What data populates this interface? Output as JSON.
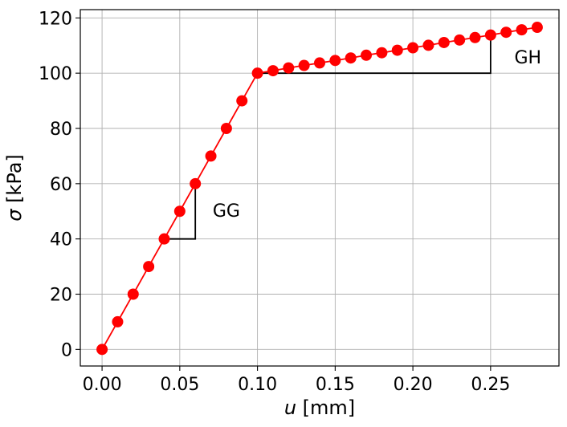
{
  "chart_data": {
    "type": "line",
    "title": "",
    "xlabel": {
      "symbol": "u",
      "unit": " [mm]"
    },
    "ylabel": {
      "symbol": "σ",
      "unit": " [kPa]"
    },
    "xlim": [
      -0.014,
      0.294
    ],
    "ylim": [
      -6,
      123
    ],
    "xticks": [
      0.0,
      0.05,
      0.1,
      0.15,
      0.2,
      0.25
    ],
    "xtick_labels": [
      "0.00",
      "0.05",
      "0.10",
      "0.15",
      "0.20",
      "0.25"
    ],
    "yticks": [
      0,
      20,
      40,
      60,
      80,
      100,
      120
    ],
    "ytick_labels": [
      "0",
      "20",
      "40",
      "60",
      "80",
      "100",
      "120"
    ],
    "grid": true,
    "series": [
      {
        "color": "#ff0000",
        "marker": "circle",
        "x": [
          0.0,
          0.01,
          0.02,
          0.03,
          0.04,
          0.05,
          0.06,
          0.07,
          0.08,
          0.09,
          0.1,
          0.11,
          0.12,
          0.13,
          0.14,
          0.15,
          0.16,
          0.17,
          0.18,
          0.19,
          0.2,
          0.21,
          0.22,
          0.23,
          0.24,
          0.25,
          0.26,
          0.27,
          0.28
        ],
        "y": [
          0,
          10,
          20,
          30,
          40,
          50,
          60,
          70,
          80,
          90,
          100,
          100.9,
          101.9,
          102.8,
          103.7,
          104.6,
          105.5,
          106.5,
          107.4,
          108.3,
          109.2,
          110.1,
          111.1,
          112.0,
          112.9,
          113.8,
          114.8,
          115.7,
          116.6
        ]
      }
    ],
    "annotations": [
      {
        "label": "GG",
        "color": "#000000",
        "path": [
          [
            0.04,
            40
          ],
          [
            0.06,
            40
          ],
          [
            0.06,
            60
          ]
        ],
        "text_at": [
          0.08,
          48
        ]
      },
      {
        "label": "GH",
        "color": "#000000",
        "path": [
          [
            0.1,
            100
          ],
          [
            0.25,
            100
          ],
          [
            0.25,
            113.8
          ]
        ],
        "text_at": [
          0.274,
          103.6
        ]
      }
    ]
  }
}
